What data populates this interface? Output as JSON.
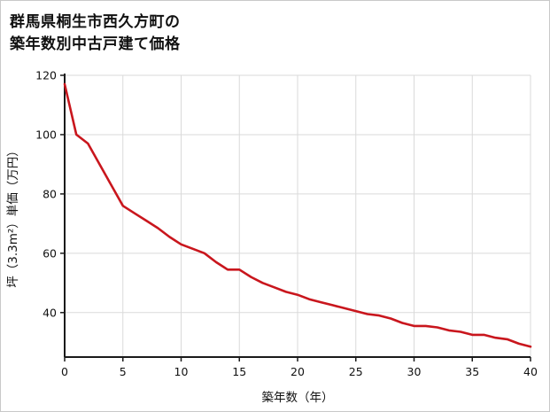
{
  "header": {
    "title_line1": "群馬県桐生市西久方町の",
    "title_line2": "築年数別中古戸建て価格"
  },
  "chart_data": {
    "type": "line",
    "title": "群馬県桐生市西久方町の築年数別中古戸建て価格",
    "xlabel": "築年数（年）",
    "ylabel": "坪（3.3m²）単価（万円）",
    "x": [
      0,
      1,
      2,
      3,
      4,
      5,
      6,
      7,
      8,
      9,
      10,
      11,
      12,
      13,
      14,
      15,
      16,
      17,
      18,
      19,
      20,
      21,
      22,
      23,
      24,
      25,
      26,
      27,
      28,
      29,
      30,
      31,
      32,
      33,
      34,
      35,
      36,
      37,
      38,
      39,
      40
    ],
    "values": [
      117,
      100,
      97,
      90,
      83,
      76,
      73.5,
      71,
      68.5,
      65.5,
      63,
      61.5,
      60,
      57,
      54.5,
      54.5,
      52,
      50,
      48.5,
      47,
      46,
      44.5,
      43.5,
      42.5,
      41.5,
      40.5,
      39.5,
      39,
      38,
      36.5,
      35.5,
      35.5,
      35,
      34,
      33.5,
      32.5,
      32.5,
      31.5,
      31,
      29.5,
      28.5
    ],
    "xlim": [
      0,
      40
    ],
    "ylim": [
      25,
      120
    ],
    "xticks": [
      0,
      5,
      10,
      15,
      20,
      25,
      30,
      35,
      40
    ],
    "yticks": [
      40,
      60,
      80,
      100,
      120
    ],
    "grid": true,
    "legend": false,
    "line_color": "#c9161d",
    "axis_color": "#1a1a1a",
    "grid_color": "#dadada"
  }
}
